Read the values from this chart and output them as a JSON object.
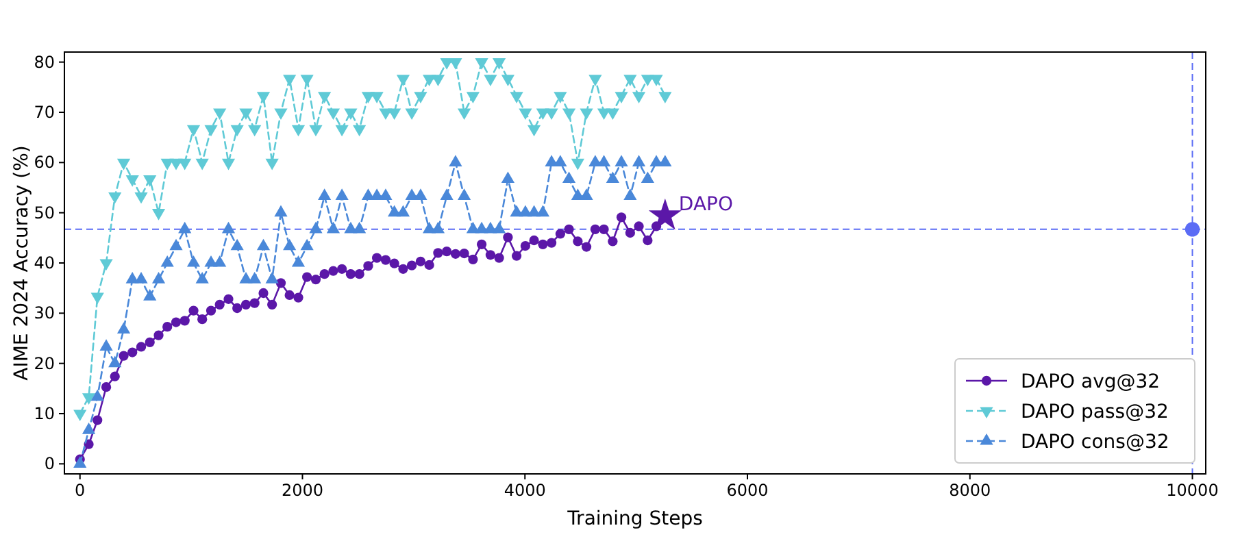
{
  "chart_data": {
    "type": "line",
    "xlabel": "Training Steps",
    "ylabel": "AIME 2024 Accuracy (%)",
    "x": [
      0,
      79,
      157,
      236,
      314,
      393,
      471,
      550,
      628,
      707,
      785,
      864,
      942,
      1021,
      1099,
      1178,
      1256,
      1335,
      1413,
      1492,
      1570,
      1649,
      1727,
      1806,
      1884,
      1963,
      2041,
      2120,
      2198,
      2277,
      2355,
      2434,
      2512,
      2591,
      2669,
      2748,
      2826,
      2905,
      2983,
      3062,
      3140,
      3219,
      3297,
      3376,
      3454,
      3533,
      3611,
      3690,
      3768,
      3847,
      3925,
      4004,
      4082,
      4161,
      4239,
      4318,
      4396,
      4475,
      4553,
      4632,
      4710,
      4789,
      4867,
      4946,
      5024,
      5103,
      5181,
      5260
    ],
    "series": [
      {
        "name": "DAPO avg@32",
        "color": "#5b17a8",
        "marker": "circle",
        "line_style": "solid",
        "values": [
          0.9,
          3.9,
          8.7,
          15.3,
          17.4,
          21.5,
          22.2,
          23.3,
          24.2,
          25.6,
          27.3,
          28.2,
          28.5,
          30.5,
          28.8,
          30.5,
          31.7,
          32.8,
          31.0,
          31.7,
          32.0,
          34.0,
          31.7,
          36.0,
          33.6,
          33.1,
          37.2,
          36.7,
          37.8,
          38.4,
          38.8,
          37.8,
          37.8,
          39.4,
          41.0,
          40.6,
          39.9,
          38.8,
          39.5,
          40.3,
          39.6,
          42.0,
          42.3,
          41.8,
          41.9,
          40.7,
          43.7,
          41.6,
          41.0,
          45.1,
          41.4,
          43.4,
          44.5,
          43.7,
          44.0,
          45.8,
          46.7,
          44.3,
          43.2,
          46.7,
          46.7,
          44.3,
          49.1,
          46.0,
          47.3,
          44.5,
          47.3,
          49.4
        ]
      },
      {
        "name": "DAPO pass@32",
        "color": "#5fcad6",
        "marker": "triangle_down",
        "line_style": "dashed",
        "values": [
          10,
          13.3,
          33.3,
          40,
          53.3,
          60,
          56.7,
          53.3,
          56.7,
          50,
          60,
          60,
          60,
          66.7,
          60,
          66.7,
          70,
          60,
          66.7,
          70,
          66.7,
          73.3,
          60,
          70,
          76.7,
          66.7,
          76.7,
          66.7,
          73.3,
          70,
          66.7,
          70,
          66.7,
          73.3,
          73.3,
          70,
          70,
          76.7,
          70,
          73.3,
          76.7,
          76.7,
          80,
          80,
          70,
          73.3,
          80,
          76.7,
          80,
          76.7,
          73.3,
          70,
          66.7,
          70,
          70,
          73.3,
          70,
          60,
          70,
          76.7,
          70,
          70,
          73.3,
          76.7,
          73.3,
          76.7,
          76.7,
          73.3
        ]
      },
      {
        "name": "DAPO cons@32",
        "color": "#4a88d9",
        "marker": "triangle",
        "line_style": "dashed",
        "values": [
          0,
          6.7,
          13.3,
          23.3,
          20,
          26.7,
          36.7,
          36.7,
          33.3,
          36.7,
          40,
          43.3,
          46.7,
          40,
          36.7,
          40,
          40,
          46.7,
          43.3,
          36.7,
          36.7,
          43.3,
          36.7,
          50,
          43.3,
          40,
          43.3,
          46.7,
          53.3,
          46.7,
          53.3,
          46.7,
          46.7,
          53.3,
          53.3,
          53.3,
          50,
          50,
          53.3,
          53.3,
          46.7,
          46.7,
          53.3,
          60,
          53.3,
          46.7,
          46.7,
          46.7,
          46.7,
          56.7,
          50,
          50,
          50,
          50,
          60,
          60,
          56.7,
          53.3,
          53.3,
          60,
          60,
          56.7,
          60,
          53.3,
          60,
          56.7,
          60,
          60
        ]
      },
      {
        "type": "scatter",
        "color": "#5b17a8",
        "marker": "star",
        "x": [
          5260
        ],
        "values": [
          49.4
        ]
      },
      {
        "type": "scatter",
        "color": "#5b6cf5",
        "marker": "circle",
        "x": [
          10000
        ],
        "values": [
          46.7
        ]
      }
    ],
    "ref_lines": [
      {
        "axis": "y",
        "value": 46.7,
        "color": "#5b6cf5",
        "line_style": "dashed"
      },
      {
        "axis": "x",
        "value": 10000,
        "color": "#5b6cf5",
        "line_style": "dashed"
      }
    ],
    "annotations": [
      {
        "text": "DAPO",
        "x": 5260,
        "y": 49.4
      }
    ],
    "xlim": [
      -140,
      10120
    ],
    "xticks": [
      0,
      2000,
      4000,
      6000,
      8000,
      10000
    ],
    "ylim": [
      -2,
      82
    ],
    "yticks": [
      0,
      10,
      20,
      30,
      40,
      50,
      60,
      70,
      80
    ],
    "grid": false,
    "legend": "bottom right"
  }
}
